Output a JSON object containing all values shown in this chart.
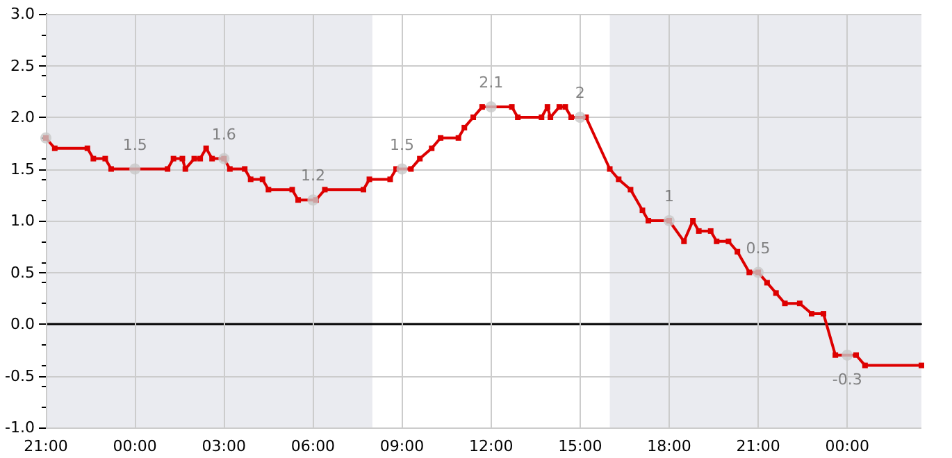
{
  "chart_data": {
    "type": "line",
    "marker": "square",
    "grid": true,
    "xlim": [
      "--01-01T21:00",
      "--01-03T02:30"
    ],
    "ylim": [
      -1,
      3
    ],
    "xticks": [
      {
        "value": "--01-01T21:00",
        "label": "21:00"
      },
      {
        "value": "--01-02T00:00",
        "label": "00:00"
      },
      {
        "value": "--01-02T03:00",
        "label": "03:00"
      },
      {
        "value": "--01-02T06:00",
        "label": "06:00"
      },
      {
        "value": "--01-02T09:00",
        "label": "09:00"
      },
      {
        "value": "--01-02T12:00",
        "label": "12:00"
      },
      {
        "value": "--01-02T15:00",
        "label": "15:00"
      },
      {
        "value": "--01-02T18:00",
        "label": "18:00"
      },
      {
        "value": "--01-02T21:00",
        "label": "21:00"
      },
      {
        "value": "--01-03T00:00",
        "label": "00:00"
      }
    ],
    "yticks": [
      {
        "value": -1,
        "label": "-1.0"
      },
      {
        "value": -0.5,
        "label": "-0.5"
      },
      {
        "value": 0,
        "label": "0.0"
      },
      {
        "value": 0.5,
        "label": "0.5"
      },
      {
        "value": 1,
        "label": "1.0"
      },
      {
        "value": 1.5,
        "label": "1.5"
      },
      {
        "value": 2,
        "label": "2.0"
      },
      {
        "value": 2.5,
        "label": "2.5"
      },
      {
        "value": 3,
        "label": "3.0"
      }
    ],
    "ref_lines": [
      {
        "axis": "y",
        "value": 0,
        "color": "#000000"
      }
    ],
    "bands": [
      {
        "axis": "x",
        "from": "--01-01T21:00",
        "to": "--01-02T08:00",
        "color": "#eaebf0"
      },
      {
        "axis": "x",
        "from": "--01-02T16:00",
        "to": "--01-03T02:30",
        "color": "#eaebf0"
      }
    ],
    "series": [
      {
        "color": "#dd0000",
        "x": [
          "--01-01T21:00",
          "--01-01T21:18",
          "--01-01T22:24",
          "--01-01T22:36",
          "--01-01T23:00",
          "--01-01T23:12",
          "--01-02T01:06",
          "--01-02T01:18",
          "--01-02T01:36",
          "--01-02T01:42",
          "--01-02T02:00",
          "--01-02T02:12",
          "--01-02T02:24",
          "--01-02T02:36",
          "--01-02T03:00",
          "--01-02T03:12",
          "--01-02T03:42",
          "--01-02T03:54",
          "--01-02T04:18",
          "--01-02T04:30",
          "--01-02T05:18",
          "--01-02T05:30",
          "--01-02T06:06",
          "--01-02T06:24",
          "--01-02T07:42",
          "--01-02T07:54",
          "--01-02T08:36",
          "--01-02T08:48",
          "--01-02T09:18",
          "--01-02T09:36",
          "--01-02T10:00",
          "--01-02T10:18",
          "--01-02T10:54",
          "--01-02T11:06",
          "--01-02T11:24",
          "--01-02T11:42",
          "--01-02T12:42",
          "--01-02T12:54",
          "--01-02T13:42",
          "--01-02T13:54",
          "--01-02T14:00",
          "--01-02T14:18",
          "--01-02T14:30",
          "--01-02T14:42",
          "--01-02T15:12",
          "--01-02T16:00",
          "--01-02T16:18",
          "--01-02T16:42",
          "--01-02T17:06",
          "--01-02T17:18",
          "--01-02T18:00",
          "--01-02T18:30",
          "--01-02T18:48",
          "--01-02T19:00",
          "--01-02T19:24",
          "--01-02T19:36",
          "--01-02T20:00",
          "--01-02T20:18",
          "--01-02T20:42",
          "--01-02T21:00",
          "--01-02T21:18",
          "--01-02T21:36",
          "--01-02T21:54",
          "--01-02T22:24",
          "--01-02T22:48",
          "--01-02T23:12",
          "--01-02T23:36",
          "--01-03T00:18",
          "--01-03T00:36",
          "--01-03T02:30"
        ],
        "values": [
          1.8,
          1.7,
          1.7,
          1.6,
          1.6,
          1.5,
          1.5,
          1.6,
          1.6,
          1.5,
          1.6,
          1.6,
          1.7,
          1.6,
          1.6,
          1.5,
          1.5,
          1.4,
          1.4,
          1.3,
          1.3,
          1.2,
          1.2,
          1.3,
          1.3,
          1.4,
          1.4,
          1.5,
          1.5,
          1.6,
          1.7,
          1.8,
          1.8,
          1.9,
          2,
          2.1,
          2.1,
          2,
          2,
          2.1,
          2,
          2.1,
          2.1,
          2,
          2,
          1.5,
          1.4,
          1.3,
          1.1,
          1,
          1,
          0.8,
          1,
          0.9,
          0.9,
          0.8,
          0.8,
          0.7,
          0.5,
          0.5,
          0.4,
          0.3,
          0.2,
          0.2,
          0.1,
          0.1,
          -0.3,
          -0.3,
          -0.4,
          -0.4
        ]
      },
      {
        "type": "scatter",
        "marker": "circle",
        "color": "#c8c8c8",
        "x": [
          "--01-01T21:00",
          "--01-02T00:00",
          "--01-02T03:00",
          "--01-02T06:00",
          "--01-02T09:00",
          "--01-02T12:00",
          "--01-02T15:00",
          "--01-02T18:00",
          "--01-02T21:00",
          "--01-03T00:00"
        ],
        "values": [
          1.8,
          1.5,
          1.6,
          1.2,
          1.5,
          2.1,
          2,
          1,
          0.5,
          -0.3
        ],
        "value_labels": [
          null,
          "1.5",
          "1.6",
          "1.2",
          "1.5",
          "2.1",
          "2",
          "1",
          "0.5",
          "-0.3"
        ]
      }
    ]
  }
}
